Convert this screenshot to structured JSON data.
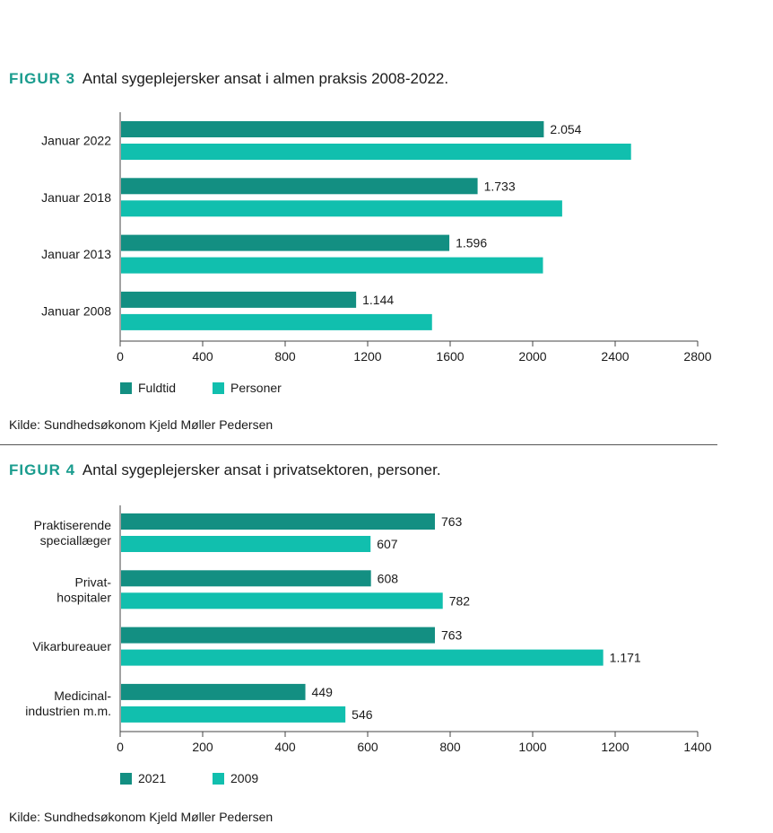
{
  "colors": {
    "dark": "#138f82",
    "light": "#11bfae",
    "accent": "#1a9c8e"
  },
  "figure3": {
    "label": "FIGUR 3",
    "title": "Antal sygeplejersker ansat i almen praksis 2008-2022.",
    "source": "Kilde: Sundhedsøkonom Kjeld Møller Pedersen"
  },
  "figure4": {
    "label": "FIGUR 4",
    "title": "Antal sygeplejersker ansat i privatsektoren, personer.",
    "source": "Kilde: Sundhedsøkonom Kjeld Møller Pedersen"
  },
  "chart_data": [
    {
      "type": "bar",
      "orientation": "horizontal",
      "title": "Antal sygeplejersker ansat i almen praksis 2008-2022.",
      "categories": [
        "Januar 2022",
        "Januar 2018",
        "Januar 2013",
        "Januar 2008"
      ],
      "series": [
        {
          "name": "Fuldtid",
          "values": [
            2054,
            1733,
            1596,
            1144
          ],
          "labels": [
            "2.054",
            "1.733",
            "1.596",
            "1.144"
          ]
        },
        {
          "name": "Personer",
          "values": [
            2477,
            2143,
            2050,
            1512
          ],
          "labels": [
            "",
            "",
            "",
            ""
          ]
        }
      ],
      "xlim": [
        0,
        2800
      ],
      "xticks": [
        0,
        400,
        800,
        1200,
        1600,
        2000,
        2400,
        2800
      ],
      "xticklabels": [
        "0",
        "400",
        "800",
        "1200",
        "1600",
        "2000",
        "2400",
        "2800"
      ],
      "legend_position": "bottom-left"
    },
    {
      "type": "bar",
      "orientation": "horizontal",
      "title": "Antal sygeplejersker ansat i privatsektoren, personer.",
      "categories": [
        [
          "Praktiserende",
          "speciallæger"
        ],
        [
          "Privat-",
          "hospitaler"
        ],
        [
          "Vikarbureauer"
        ],
        [
          "Medicinal-",
          "industrien m.m."
        ]
      ],
      "series": [
        {
          "name": "2021",
          "values": [
            763,
            608,
            763,
            449
          ],
          "labels": [
            "763",
            "608",
            "763",
            "449"
          ]
        },
        {
          "name": "2009",
          "values": [
            607,
            782,
            1171,
            546
          ],
          "labels": [
            "607",
            "782",
            "1.171",
            "546"
          ]
        }
      ],
      "xlim": [
        0,
        1400
      ],
      "xticks": [
        0,
        200,
        400,
        600,
        800,
        1000,
        1200,
        1400
      ],
      "xticklabels": [
        "0",
        "200",
        "400",
        "600",
        "800",
        "1000",
        "1200",
        "1400"
      ],
      "legend_position": "bottom-left"
    }
  ]
}
